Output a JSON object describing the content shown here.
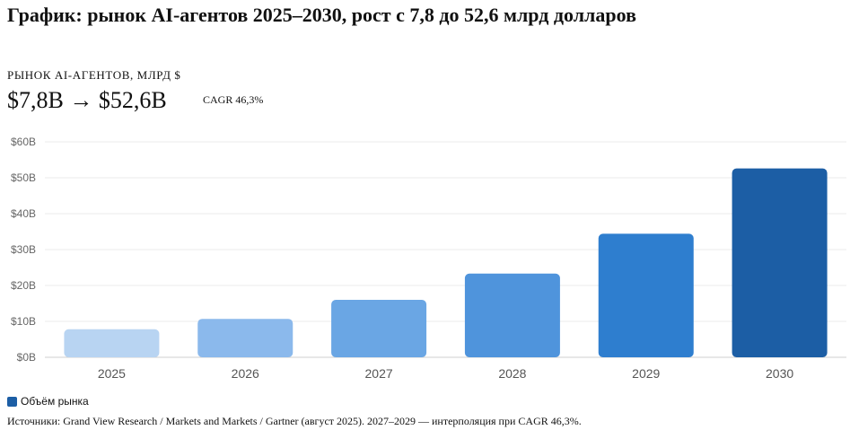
{
  "page": {
    "title": "График: рынок AI-агентов 2025–2030, рост с 7,8 до 52,6 млрд долларов",
    "subtitle": "РЫНОК AI-АГЕНТОВ, МЛРД $",
    "headline": "$7,8B → $52,6B",
    "cagr": "CAGR 46,3%",
    "legend_label": "Объём рынка",
    "source": "Источники: Grand View Research / Markets and Markets / Gartner (август 2025). 2027–2029 — интерполяция при CAGR 46,3%."
  },
  "chart_data": {
    "type": "bar",
    "title": "",
    "xlabel": "",
    "ylabel": "",
    "categories": [
      "2025",
      "2026",
      "2027",
      "2028",
      "2029",
      "2030"
    ],
    "series": [
      {
        "name": "Объём рынка",
        "values": [
          7.8,
          10.7,
          16.0,
          23.3,
          34.4,
          52.6
        ]
      }
    ],
    "ylim": [
      0,
      60
    ],
    "yticks": [
      0,
      10,
      20,
      30,
      40,
      50,
      60
    ],
    "ytick_labels": [
      "$0B",
      "$10B",
      "$20B",
      "$30B",
      "$40B",
      "$50B",
      "$60B"
    ],
    "grid": true,
    "legend_position": "bottom-left",
    "bar_colors": [
      "#b8d4f2",
      "#8bb9ec",
      "#6aa6e4",
      "#4f94dc",
      "#2e7ecf",
      "#1c5ea5"
    ],
    "legend_color": "#1c5ea5"
  }
}
